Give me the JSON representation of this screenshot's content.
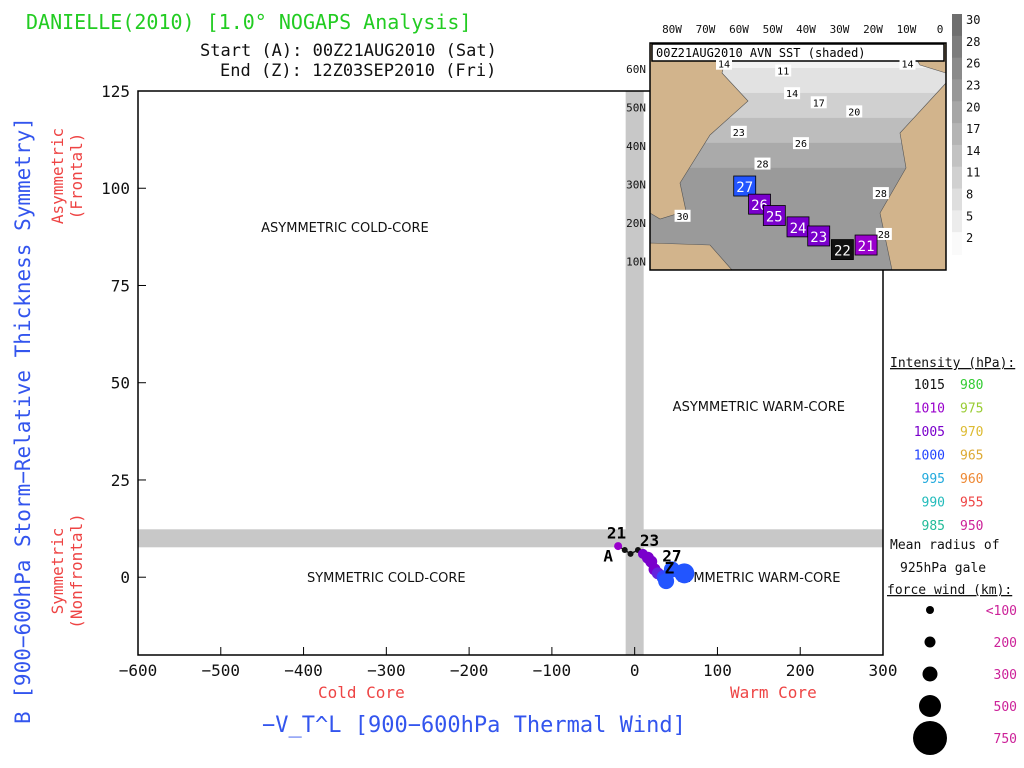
{
  "header": {
    "title": "DANIELLE(2010) [1.0° NOGAPS Analysis]",
    "start": "Start (A): 00Z21AUG2010 (Sat)",
    "end": "End (Z): 12Z03SEP2010 (Fri)"
  },
  "colors": {
    "title": "#22cc22",
    "axis_label": "#3355ee",
    "side_label": "#ee4444",
    "guide_band": "#c8c8c8",
    "land": "#d2b48c"
  },
  "chart_data": {
    "type": "scatter",
    "title": "DANIELLE(2010) [1.0° NOGAPS Analysis]",
    "xlabel": "−V_T^L [900−600hPa Thermal Wind]",
    "ylabel": "B [900−600hPa Storm−Relative Thickness Symmetry]",
    "xlim": [
      -600,
      300
    ],
    "ylim": [
      -20,
      125
    ],
    "x_ticks": [
      -600,
      -500,
      -400,
      -300,
      -200,
      -100,
      0,
      100,
      200,
      300
    ],
    "y_ticks": [
      0,
      25,
      50,
      75,
      100,
      125
    ],
    "x_tick_labels": [
      "−600",
      "−500",
      "−400",
      "−300",
      "−200",
      "−100",
      "0",
      "100",
      "200",
      "300"
    ],
    "y_tick_labels": [
      "0",
      "25",
      "50",
      "75",
      "100",
      "125"
    ],
    "grid": false,
    "guide_lines": {
      "x": 0,
      "y": 10
    },
    "x_side_labels": {
      "left": "Cold Core",
      "right": "Warm Core"
    },
    "y_side_labels": {
      "upper": "Asymmetric\n(Frontal)",
      "lower": "Symmetric\n(Nonfrontal)"
    },
    "quadrant_labels": [
      {
        "text": "ASYMMETRIC COLD-CORE",
        "x": -350,
        "y": 90
      },
      {
        "text": "ASYMMETRIC WARM-CORE",
        "x": 150,
        "y": 44
      },
      {
        "text": "SYMMETRIC COLD-CORE",
        "x": -300,
        "y": 0
      },
      {
        "text": "SYMMETRIC WARM-CORE",
        "x": 150,
        "y": 0
      }
    ],
    "track_labels": [
      {
        "text": "21",
        "x": -22,
        "y": 10
      },
      {
        "text": "23",
        "x": 18,
        "y": 8
      },
      {
        "text": "27",
        "x": 45,
        "y": 4
      },
      {
        "text": "A",
        "x": -32,
        "y": 4
      },
      {
        "text": "Z",
        "x": 42,
        "y": 1
      }
    ],
    "series": [
      {
        "points": [
          {
            "x": -20,
            "y": 8,
            "color": "#9900cc",
            "r": 4
          },
          {
            "x": -12,
            "y": 7,
            "color": "#111111",
            "r": 3
          },
          {
            "x": -5,
            "y": 6,
            "color": "#111111",
            "r": 3
          },
          {
            "x": 4,
            "y": 7,
            "color": "#111111",
            "r": 3
          },
          {
            "x": 10,
            "y": 6,
            "color": "#7a00cc",
            "r": 5
          },
          {
            "x": 16,
            "y": 5,
            "color": "#7a00cc",
            "r": 6
          },
          {
            "x": 20,
            "y": 4,
            "color": "#7a00cc",
            "r": 6
          },
          {
            "x": 24,
            "y": 2,
            "color": "#7a00cc",
            "r": 6
          },
          {
            "x": 28,
            "y": 1,
            "color": "#6622dd",
            "r": 6
          },
          {
            "x": 35,
            "y": 0,
            "color": "#3344ff",
            "r": 7
          },
          {
            "x": 38,
            "y": -1,
            "color": "#2255ff",
            "r": 8
          },
          {
            "x": 45,
            "y": 2,
            "color": "#2255ff",
            "r": 8
          },
          {
            "x": 60,
            "y": 1,
            "color": "#2255ff",
            "r": 10
          }
        ]
      }
    ]
  },
  "inset": {
    "title": "00Z21AUG2010 AVN SST (shaded)",
    "lon_labels": [
      "80W",
      "70W",
      "60W",
      "50W",
      "40W",
      "30W",
      "20W",
      "10W",
      "0"
    ],
    "lat_labels": [
      "60N",
      "50N",
      "40N",
      "30N",
      "20N",
      "10N"
    ],
    "sst_labels": [
      {
        "t": "14",
        "col": 0.25,
        "row": 0.1
      },
      {
        "t": "11",
        "col": 0.45,
        "row": 0.13
      },
      {
        "t": "14",
        "col": 0.48,
        "row": 0.23
      },
      {
        "t": "17",
        "col": 0.57,
        "row": 0.27
      },
      {
        "t": "20",
        "col": 0.69,
        "row": 0.31
      },
      {
        "t": "14",
        "col": 0.87,
        "row": 0.1
      },
      {
        "t": "23",
        "col": 0.3,
        "row": 0.4
      },
      {
        "t": "26",
        "col": 0.51,
        "row": 0.45
      },
      {
        "t": "28",
        "col": 0.38,
        "row": 0.54
      },
      {
        "t": "28",
        "col": 0.78,
        "row": 0.67
      },
      {
        "t": "28",
        "col": 0.79,
        "row": 0.85
      },
      {
        "t": "30",
        "col": 0.11,
        "row": 0.77
      }
    ],
    "track_boxes": [
      {
        "label": "27",
        "col": 0.32,
        "row": 0.63,
        "color": "#2255ff"
      },
      {
        "label": "26",
        "col": 0.37,
        "row": 0.71,
        "color": "#7a00cc"
      },
      {
        "label": "25",
        "col": 0.42,
        "row": 0.76,
        "color": "#7a00cc"
      },
      {
        "label": "24",
        "col": 0.5,
        "row": 0.81,
        "color": "#7a00cc"
      },
      {
        "label": "23",
        "col": 0.57,
        "row": 0.85,
        "color": "#7a00cc"
      },
      {
        "label": "22",
        "col": 0.65,
        "row": 0.91,
        "color": "#111111"
      },
      {
        "label": "21",
        "col": 0.73,
        "row": 0.89,
        "color": "#9900cc"
      }
    ],
    "scale_labels": [
      "30",
      "28",
      "26",
      "23",
      "20",
      "17",
      "14",
      "11",
      "8",
      "5",
      "2"
    ]
  },
  "legend": {
    "intensity_title": "Intensity (hPa):",
    "intensity": [
      {
        "v": "1015",
        "c": "#111111"
      },
      {
        "v": "980",
        "c": "#33cc33"
      },
      {
        "v": "1010",
        "c": "#9900cc"
      },
      {
        "v": "975",
        "c": "#99cc33"
      },
      {
        "v": "1005",
        "c": "#7a00cc"
      },
      {
        "v": "970",
        "c": "#ddbb33"
      },
      {
        "v": "1000",
        "c": "#2244ff"
      },
      {
        "v": "965",
        "c": "#ddaa33"
      },
      {
        "v": "995",
        "c": "#22aadd"
      },
      {
        "v": "960",
        "c": "#ee8833"
      },
      {
        "v": "990",
        "c": "#22bbbb"
      },
      {
        "v": "955",
        "c": "#ee4444"
      },
      {
        "v": "985",
        "c": "#22bb99"
      },
      {
        "v": "950",
        "c": "#cc2299"
      }
    ],
    "radius_title_1": "Mean radius of",
    "radius_title_2": "925hPa gale",
    "radius_title_3": "force wind (km):",
    "radius": [
      {
        "label": "<100",
        "size": 4
      },
      {
        "label": "200",
        "size": 5.5
      },
      {
        "label": "300",
        "size": 7.5
      },
      {
        "label": "500",
        "size": 11
      },
      {
        "label": "750",
        "size": 17
      }
    ],
    "radius_color": "#cc2299"
  }
}
